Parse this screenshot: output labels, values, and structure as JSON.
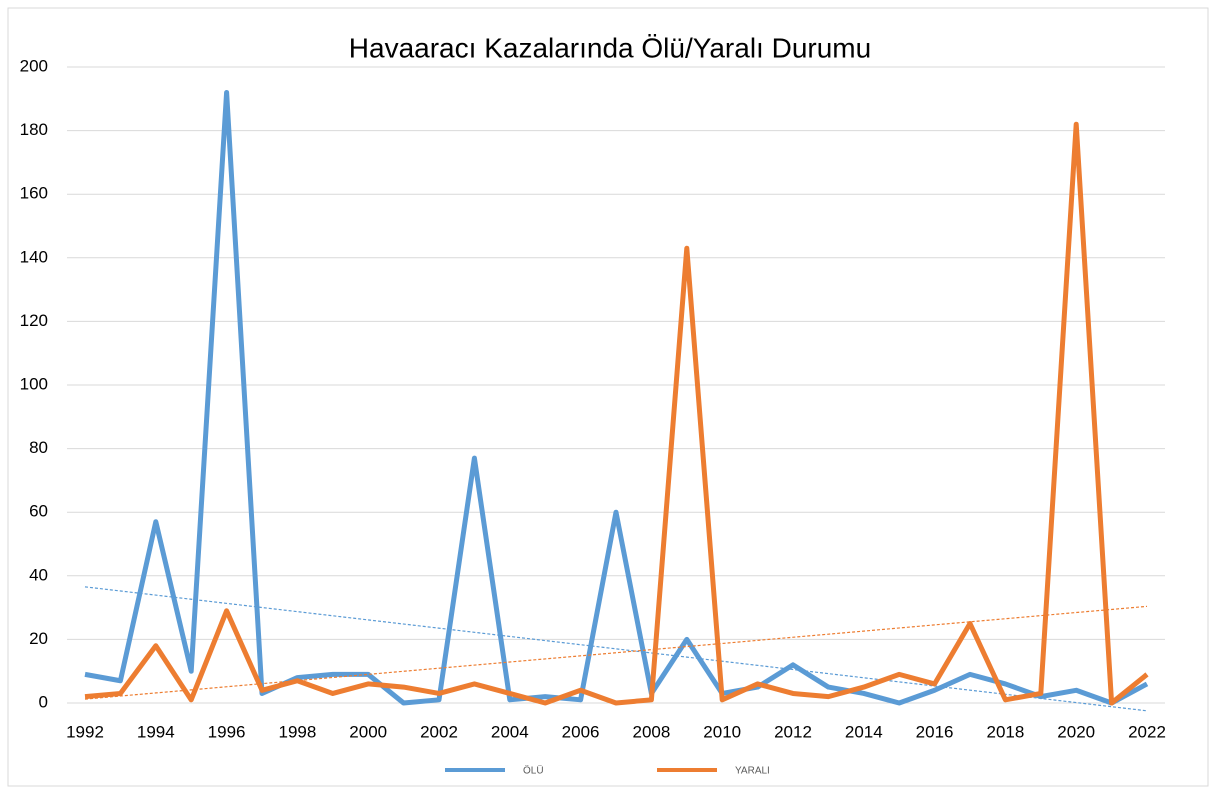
{
  "chart_data": {
    "type": "line",
    "title": "Havaaracı Kazalarında Ölü/Yaralı Durumu",
    "x": [
      1992,
      1993,
      1994,
      1995,
      1996,
      1997,
      1998,
      1999,
      2000,
      2001,
      2002,
      2003,
      2004,
      2005,
      2006,
      2007,
      2008,
      2009,
      2010,
      2011,
      2012,
      2013,
      2014,
      2015,
      2016,
      2017,
      2018,
      2019,
      2020,
      2021,
      2022
    ],
    "series": [
      {
        "name": "ÖLÜ",
        "color": "#5b9bd5",
        "values": [
          9,
          7,
          57,
          10,
          192,
          3,
          8,
          9,
          9,
          0,
          1,
          77,
          1,
          2,
          1,
          60,
          3,
          20,
          3,
          5,
          12,
          5,
          3,
          0,
          4,
          9,
          6,
          2,
          4,
          0,
          6
        ]
      },
      {
        "name": "YARALI",
        "color": "#ed7d31",
        "values": [
          2,
          3,
          18,
          1,
          29,
          4,
          7,
          3,
          6,
          5,
          3,
          6,
          3,
          0,
          4,
          0,
          1,
          143,
          1,
          6,
          3,
          2,
          5,
          9,
          6,
          25,
          1,
          3,
          182,
          0,
          9
        ]
      }
    ],
    "xlim": [
      1992,
      2022
    ],
    "xticks": [
      1992,
      1994,
      1996,
      1998,
      2000,
      2002,
      2004,
      2006,
      2008,
      2010,
      2012,
      2014,
      2016,
      2018,
      2020,
      2022
    ],
    "ylim": [
      0,
      200
    ],
    "yticks": [
      0,
      20,
      40,
      60,
      80,
      100,
      120,
      140,
      160,
      180,
      200
    ],
    "grid": true,
    "trendline": true,
    "legend": "bottom"
  }
}
